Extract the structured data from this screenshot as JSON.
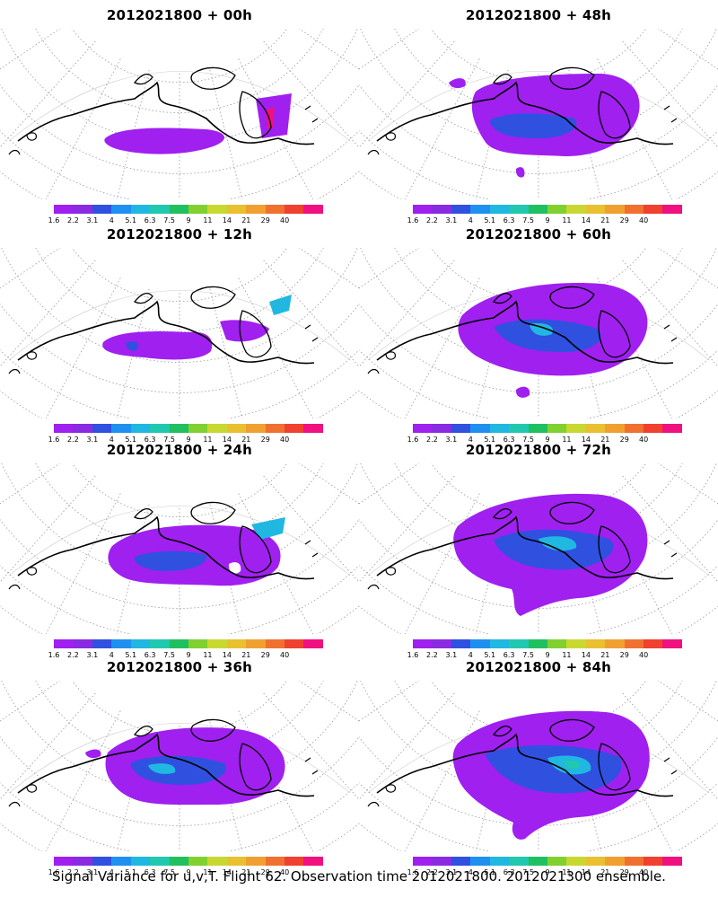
{
  "panels": [
    {
      "title": "2012021800  + 00h",
      "lead": "00h"
    },
    {
      "title": "2012021800  + 48h",
      "lead": "48h"
    },
    {
      "title": "2012021800  + 12h",
      "lead": "12h"
    },
    {
      "title": "2012021800  + 60h",
      "lead": "60h"
    },
    {
      "title": "2012021800  + 24h",
      "lead": "24h"
    },
    {
      "title": "2012021800  + 72h",
      "lead": "72h"
    },
    {
      "title": "2012021800  + 36h",
      "lead": "36h"
    },
    {
      "title": "2012021800  + 84h",
      "lead": "84h"
    }
  ],
  "colorbar": {
    "ticks": [
      "1.6",
      "2.2",
      "3.1",
      "4",
      "5.1",
      "6.3",
      "7.5",
      "9",
      "11",
      "14",
      "21",
      "29",
      "40"
    ],
    "colors": [
      "#a020f0",
      "#8a2be2",
      "#3050e0",
      "#2090f0",
      "#20b8e0",
      "#20c8b0",
      "#20c060",
      "#80d030",
      "#c8d830",
      "#e8c030",
      "#f0a030",
      "#f07030",
      "#f04030",
      "#f01080"
    ]
  },
  "footer": "Signal Variance for u,v,T. Flight 62. Observation time 2012021800. 2012021300 ensemble."
}
